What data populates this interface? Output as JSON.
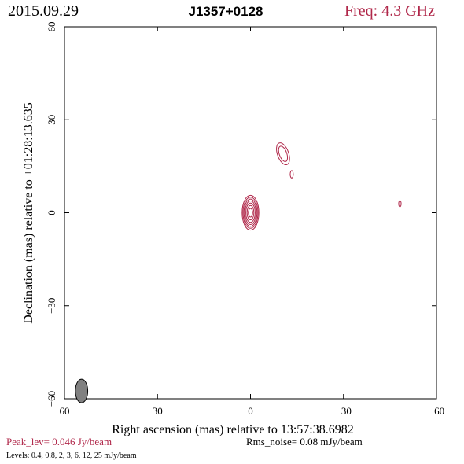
{
  "header": {
    "date": "2015.09.29",
    "source": "J1357+0128",
    "freq": "Freq: 4.3 GHz"
  },
  "footer": {
    "peak": "Peak_lev=  0.046 Jy/beam",
    "rms": "Rms_noise= 0.08 mJy/beam",
    "levels": "Levels: 0.4, 0.8,   2,   3,   6,  12,  25 mJy/beam"
  },
  "colors": {
    "contour": "#b0284a",
    "header_freq": "#b0284a",
    "peak_text": "#b0284a",
    "beam_fill": "#808080",
    "frame": "#000000"
  },
  "chart_data": {
    "type": "contour",
    "xlabel": "Right ascension (mas) relative to 13:57:38.6982",
    "ylabel": "Declination (mas) relative to +01:28:13.635",
    "xlim": [
      60,
      -60
    ],
    "ylim": [
      -60,
      60
    ],
    "xticks": [
      60,
      30,
      0,
      -30,
      -60
    ],
    "yticks": [
      -60,
      -30,
      0,
      30,
      60
    ],
    "xtick_labels": [
      "60",
      "30",
      "0",
      "−30",
      "−60"
    ],
    "ytick_labels": [
      "−60",
      "−30",
      "0",
      "30",
      "60"
    ],
    "levels_mJy_per_beam": [
      0.4,
      0.8,
      2,
      3,
      6,
      12,
      25
    ],
    "components": [
      {
        "x": 0.0,
        "y": 0.0,
        "contours": [
          {
            "a": 2.7,
            "b": 5.6,
            "pa": 0
          },
          {
            "a": 2.4,
            "b": 5.0,
            "pa": 0
          },
          {
            "a": 2.1,
            "b": 4.4,
            "pa": 0
          },
          {
            "a": 1.8,
            "b": 3.8,
            "pa": 0
          },
          {
            "a": 1.5,
            "b": 3.1,
            "pa": 0
          },
          {
            "a": 1.1,
            "b": 2.3,
            "pa": 0
          },
          {
            "a": 0.7,
            "b": 1.4,
            "pa": 0
          }
        ]
      },
      {
        "x": -10.5,
        "y": 19.0,
        "contours": [
          {
            "a": 1.8,
            "b": 3.7,
            "pa": -20
          },
          {
            "a": 1.2,
            "b": 2.6,
            "pa": -20
          }
        ]
      },
      {
        "x": -13.3,
        "y": 12.4,
        "contours": [
          {
            "a": 0.5,
            "b": 1.2,
            "pa": 0
          }
        ]
      },
      {
        "x": -48.2,
        "y": 2.9,
        "contours": [
          {
            "a": 0.4,
            "b": 1.0,
            "pa": 0
          }
        ]
      }
    ],
    "beam": {
      "x": 54.5,
      "y": -57.5,
      "bmaj": 3.8,
      "bmin": 2.0,
      "pa": 0
    },
    "grid": false
  }
}
